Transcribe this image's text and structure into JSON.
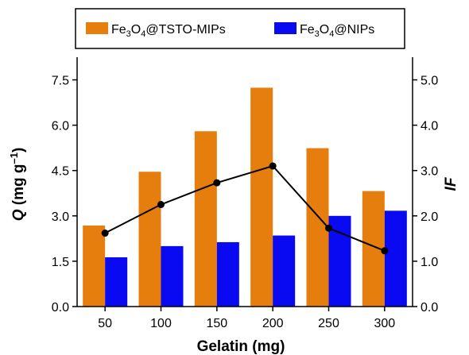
{
  "chart_data": {
    "type": "bar",
    "categories": [
      "50",
      "100",
      "150",
      "200",
      "250",
      "300"
    ],
    "series": [
      {
        "name": "Fe3O4@TSTO-MIPs",
        "axis": "left",
        "color": "#E57E0D",
        "values": [
          2.68,
          4.46,
          5.8,
          7.24,
          5.24,
          3.82
        ]
      },
      {
        "name": "Fe3O4@NIPs",
        "axis": "left",
        "color": "#0A0AF2",
        "values": [
          1.63,
          2.0,
          2.13,
          2.35,
          3.0,
          3.17
        ]
      },
      {
        "type": "line",
        "axis": "right",
        "color": "#000000",
        "values": [
          1.62,
          2.25,
          2.73,
          3.1,
          1.73,
          1.23
        ]
      }
    ],
    "xlabel": "Gelatin (mg)",
    "ylabel": {
      "italic": "Q",
      "unit": "(mg g",
      "sup": "–1",
      "close": ")"
    },
    "y2label": "IF",
    "ylim": [
      0,
      8.25
    ],
    "y2lim": [
      0,
      5.5
    ],
    "yticks": [
      "0.0",
      "1.5",
      "3.0",
      "4.5",
      "6.0",
      "7.5"
    ],
    "y2ticks": [
      "0.0",
      "1.0",
      "2.0",
      "3.0",
      "4.0",
      "5.0"
    ],
    "legend": {
      "placement": "top",
      "entries": [
        {
          "pre": "Fe",
          "s1": "3",
          "mid": "O",
          "s2": "4",
          "post": "@TSTO-MIPs",
          "color": "#E57E0D"
        },
        {
          "pre": "Fe",
          "s1": "3",
          "mid": "O",
          "s2": "4",
          "post": "@NIPs",
          "color": "#0A0AF2"
        }
      ]
    }
  }
}
